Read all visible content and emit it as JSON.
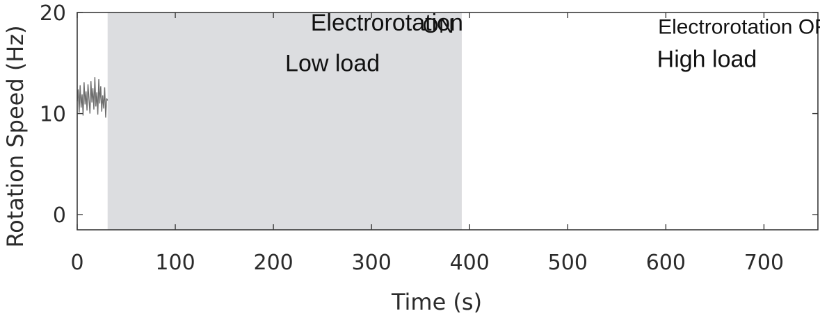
{
  "chart_data": {
    "type": "line",
    "xlabel": "Time (s)",
    "ylabel": "Rotation Speed (Hz)",
    "xlim": [
      0,
      755
    ],
    "ylim": [
      -1.5,
      20
    ],
    "x_ticks": [
      0,
      100,
      200,
      300,
      400,
      500,
      600,
      700
    ],
    "x_tick_labels": [
      "0",
      "100",
      "200",
      "300",
      "400",
      "500",
      "600",
      "700"
    ],
    "y_ticks": [
      0,
      10,
      20
    ],
    "y_tick_labels": [
      "0",
      "10",
      "20"
    ],
    "grid": false,
    "legend": "none",
    "shaded_region": {
      "x_start": 31,
      "x_end": 392,
      "color": "#dcdde0"
    },
    "series": [
      {
        "color": "#6e6e6e",
        "x": [
          0,
          1,
          2,
          3,
          4,
          5,
          6,
          7,
          8,
          9,
          10,
          11,
          12,
          13,
          14,
          15,
          16,
          17,
          18,
          19,
          20,
          21,
          22,
          23,
          24,
          25,
          26,
          27,
          28,
          29,
          30,
          31
        ],
        "y": [
          11.2,
          12.4,
          10.1,
          12.8,
          10.6,
          11.9,
          9.8,
          13.1,
          10.9,
          12.2,
          10.3,
          12.9,
          11.4,
          10.0,
          13.2,
          11.1,
          12.5,
          10.4,
          13.6,
          10.7,
          12.1,
          9.9,
          13.4,
          11.0,
          12.7,
          10.2,
          11.8,
          10.5,
          12.6,
          9.6,
          11.5,
          11.3
        ]
      }
    ],
    "annotations": [
      {
        "text": "Electrorotation",
        "x": 238,
        "y": 18.2
      },
      {
        "text": "ON",
        "x": 352,
        "y": 18.0
      },
      {
        "text": "Low load",
        "x": 212,
        "y": 14.2
      },
      {
        "text": "Electrorotation OFF",
        "x": 592,
        "y": 17.9
      },
      {
        "text": "High load",
        "x": 591,
        "y": 14.6
      }
    ]
  }
}
